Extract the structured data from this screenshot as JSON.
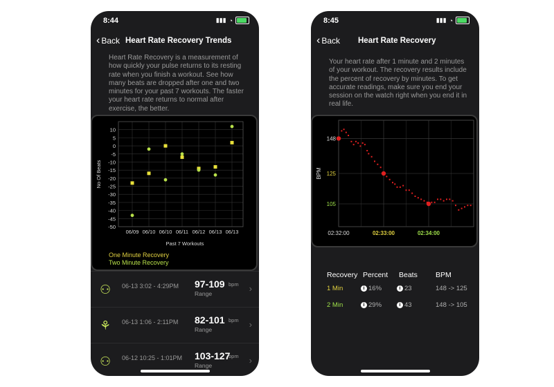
{
  "phone1": {
    "status_time": "8:44",
    "back_label": "Back",
    "title": "Heart Rate Recovery Trends",
    "description": "Heart Rate Recovery is a measurement of how quickly your pulse returns to its resting rate when you finish a workout. See how many beats are dropped after one and two minutes for your past 7 workouts. The faster your heart rate returns to normal after exercise, the better.",
    "legend_one": "One Minute Recovery",
    "legend_two": "Two Minute Recovery",
    "workouts": [
      {
        "date": "06-13 3:02 - 4:29PM",
        "range": "97-109",
        "unit": "bpm",
        "label": "Range",
        "icon": "walking-icon"
      },
      {
        "date": "06-13 1:06 - 2:11PM",
        "range": "82-101",
        "unit": "bpm",
        "label": "Range",
        "icon": "dance-icon"
      },
      {
        "date": "06-12 10:25 - 1:01PM",
        "range": "103-127",
        "unit": "bpm",
        "label": "Range",
        "icon": "walking-icon"
      }
    ]
  },
  "phone2": {
    "status_time": "8:45",
    "back_label": "Back",
    "title": "Heart Rate Recovery",
    "description": "Your heart rate after 1 minute and 2 minutes of your workout. The recovery results include the percent of recovery by minutes. To get accurate readings, make sure you end your session on the watch right when you end it in real life.",
    "table": {
      "headers": [
        "Recovery",
        "Percent",
        "Beats",
        "BPM"
      ],
      "rows": [
        {
          "label": "1 Min",
          "percent": "16%",
          "beats": "23",
          "bpm": "148 -> 125",
          "color": "#e0d040"
        },
        {
          "label": "2 Min",
          "percent": "29%",
          "beats": "43",
          "bpm": "148 -> 105",
          "color": "#9fe04a"
        }
      ]
    }
  },
  "colors": {
    "one_minute": "#e8e03a",
    "two_minute": "#b8e04a",
    "hr_point": "#e02020"
  },
  "chart_data": [
    {
      "type": "scatter",
      "title": "",
      "xlabel": "Past 7 Workouts",
      "ylabel": "No Of Beats",
      "categories": [
        "06/09",
        "06/10",
        "06/10",
        "06/11",
        "06/12",
        "06/13",
        "06/13"
      ],
      "ylim": [
        -50,
        15
      ],
      "yticks": [
        10,
        5,
        0,
        -5,
        -10,
        -15,
        -20,
        -25,
        -30,
        -35,
        -40,
        -45,
        -50
      ],
      "grid": true,
      "legend": "bottom-left",
      "series": [
        {
          "name": "One Minute Recovery",
          "values": [
            -23,
            -17,
            0,
            -7,
            -14,
            -13,
            2
          ]
        },
        {
          "name": "Two Minute Recovery",
          "values": [
            -43,
            -2,
            -21,
            -5,
            -15,
            -18,
            12
          ]
        }
      ]
    },
    {
      "type": "line",
      "title": "",
      "xlabel": "",
      "ylabel": "BPM",
      "xticks": [
        "02:32:00",
        "02:33:00",
        "02:34:00"
      ],
      "yticks": [
        148,
        125,
        105
      ],
      "xlim": [
        0,
        180
      ],
      "ylim": [
        90,
        160
      ],
      "grid": true,
      "markers": [
        {
          "x": 0,
          "y": 148
        },
        {
          "x": 60,
          "y": 125
        },
        {
          "x": 120,
          "y": 105
        }
      ],
      "series": [
        {
          "x": [
            0,
            4,
            7,
            10,
            13,
            17,
            20,
            23,
            26,
            29,
            32,
            35,
            38,
            40,
            44,
            48,
            52,
            56,
            60,
            64,
            68,
            72,
            75,
            78,
            82,
            86,
            90,
            94,
            98,
            102,
            106,
            110,
            114,
            118,
            120,
            124,
            128,
            132,
            136,
            140,
            144,
            148,
            152,
            156,
            160,
            164,
            168,
            172,
            176
          ],
          "y": [
            148,
            153,
            154,
            152,
            150,
            146,
            144,
            146,
            145,
            143,
            145,
            144,
            140,
            138,
            136,
            133,
            131,
            129,
            125,
            123,
            121,
            119,
            118,
            116,
            116,
            117,
            114,
            114,
            112,
            110,
            109,
            108,
            107,
            106,
            105,
            106,
            106,
            108,
            108,
            107,
            108,
            108,
            107,
            104,
            101,
            102,
            103,
            104,
            104
          ]
        }
      ]
    }
  ]
}
